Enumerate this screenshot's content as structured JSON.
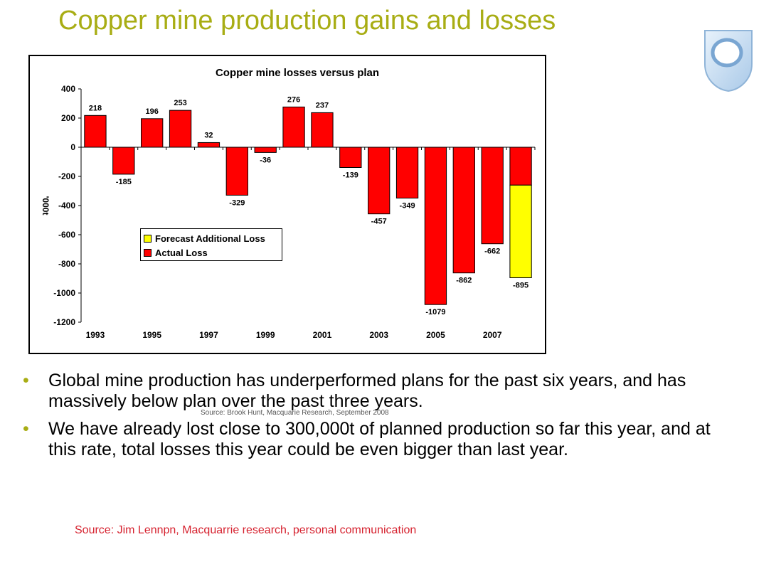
{
  "slide": {
    "title": "Copper mine production gains and losses",
    "bullets": [
      "Global mine production has underperformed plans for the past six years, and has massively below plan over the past three years.",
      "We have already lost close to 300,000t of planned production so far this year, and at this rate, total losses this year could be even bigger than last year."
    ],
    "chart_source": "Source: Brook Hunt, Macquarie Research, September 2008",
    "footer_source": "Source: Jim Lennpn, Macquarrie research, personal communication",
    "accent_color": "#a8ad14",
    "footer_color": "#d6222f"
  },
  "chart_data": {
    "type": "bar",
    "title": "Copper mine losses versus plan",
    "ylabel": "'000t",
    "xlabel": "",
    "ylim": [
      -1200,
      400
    ],
    "yticks": [
      400,
      200,
      0,
      -200,
      -400,
      -600,
      -800,
      -1000,
      -1200
    ],
    "x": [
      1993,
      1994,
      1995,
      1996,
      1997,
      1998,
      1999,
      2000,
      2001,
      2002,
      2003,
      2004,
      2005,
      2006,
      2007,
      2008
    ],
    "xtick_labels": [
      "1993",
      "1995",
      "1997",
      "1999",
      "2001",
      "2003",
      "2005",
      "2007"
    ],
    "series": [
      {
        "name": "Actual Loss",
        "color": "#ff0000",
        "values": [
          218,
          -185,
          196,
          253,
          32,
          -329,
          -36,
          276,
          237,
          -139,
          -457,
          -349,
          -1079,
          -862,
          -662,
          -260
        ]
      },
      {
        "name": "Forecast Additional Loss",
        "color": "#ffff00",
        "values": [
          0,
          0,
          0,
          0,
          0,
          0,
          0,
          0,
          0,
          0,
          0,
          0,
          0,
          0,
          0,
          -635
        ]
      }
    ],
    "data_labels": [
      "218",
      "-185",
      "196",
      "253",
      "32",
      "-329",
      "-36",
      "276",
      "237",
      "-139",
      "-457",
      "-349",
      "-1079",
      "-862",
      "-662",
      "-895"
    ],
    "legend": {
      "position": "center-left",
      "entries": [
        "Forecast Additional Loss",
        "Actual Loss"
      ]
    }
  }
}
